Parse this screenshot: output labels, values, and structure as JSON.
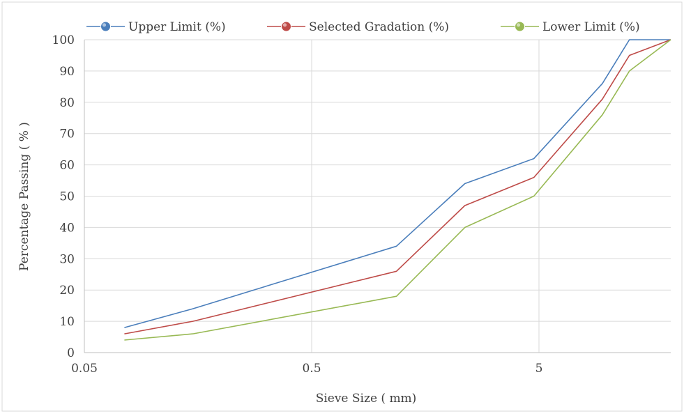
{
  "chart_data": {
    "type": "line",
    "title": "",
    "xlabel": "Sieve Size ( mm)",
    "ylabel": "Percentage Passing ( % )",
    "x_scale": "log",
    "xlim": [
      0.05,
      19
    ],
    "ylim": [
      0,
      100
    ],
    "x_ticks": [
      0.05,
      0.5,
      5
    ],
    "x_tick_labels": [
      "0.05",
      "0.5",
      "5"
    ],
    "y_ticks": [
      0,
      10,
      20,
      30,
      40,
      50,
      60,
      70,
      80,
      90,
      100
    ],
    "y_tick_labels": [
      "0",
      "10",
      "20",
      "30",
      "40",
      "50",
      "60",
      "70",
      "80",
      "90",
      "100"
    ],
    "grid": true,
    "legend_position": "top",
    "x": [
      0.075,
      0.15,
      1.18,
      2.36,
      4.75,
      9.5,
      12.5,
      19
    ],
    "series": [
      {
        "name": "Upper Limit (%)",
        "color": "#4a7ebb",
        "values": [
          8,
          14,
          34,
          54,
          62,
          86,
          100,
          100
        ]
      },
      {
        "name": "Selected Gradation (%)",
        "color": "#be4b48",
        "values": [
          6,
          10,
          26,
          47,
          56,
          81,
          95,
          100
        ]
      },
      {
        "name": "Lower Limit (%)",
        "color": "#98b954",
        "values": [
          4,
          6,
          18,
          40,
          50,
          76,
          90,
          100
        ]
      }
    ]
  }
}
